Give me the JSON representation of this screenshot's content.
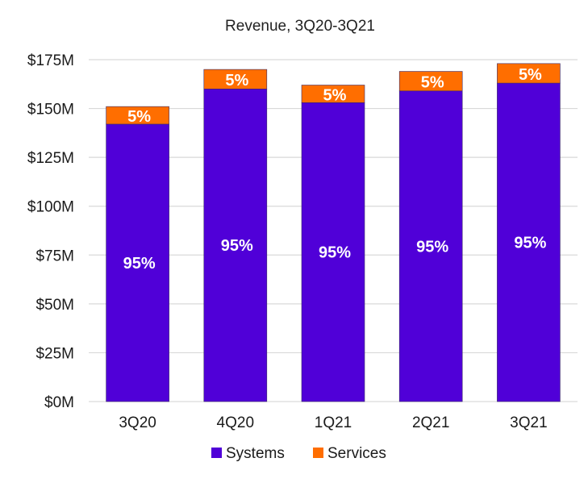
{
  "chart_data": {
    "type": "bar",
    "stacked": true,
    "title": "Revenue, 3Q20-3Q21",
    "xlabel": "",
    "ylabel": "",
    "categories": [
      "3Q20",
      "4Q20",
      "1Q21",
      "2Q21",
      "3Q21"
    ],
    "series": [
      {
        "name": "Systems",
        "color": "#5000d8",
        "values": [
          142,
          160,
          153,
          159,
          163
        ],
        "labels": [
          "95%",
          "95%",
          "95%",
          "95%",
          "95%"
        ]
      },
      {
        "name": "Services",
        "color": "#ff6e00",
        "values": [
          9,
          10,
          9,
          10,
          10
        ],
        "labels": [
          "5%",
          "5%",
          "5%",
          "5%",
          "5%"
        ]
      }
    ],
    "ylim": [
      0,
      175
    ],
    "yticks": [
      0,
      25,
      50,
      75,
      100,
      125,
      150,
      175
    ],
    "ytick_labels": [
      "$0M",
      "$25M",
      "$50M",
      "$75M",
      "$100M",
      "$125M",
      "$150M",
      "$175M"
    ],
    "grid": true,
    "legend_position": "bottom"
  }
}
